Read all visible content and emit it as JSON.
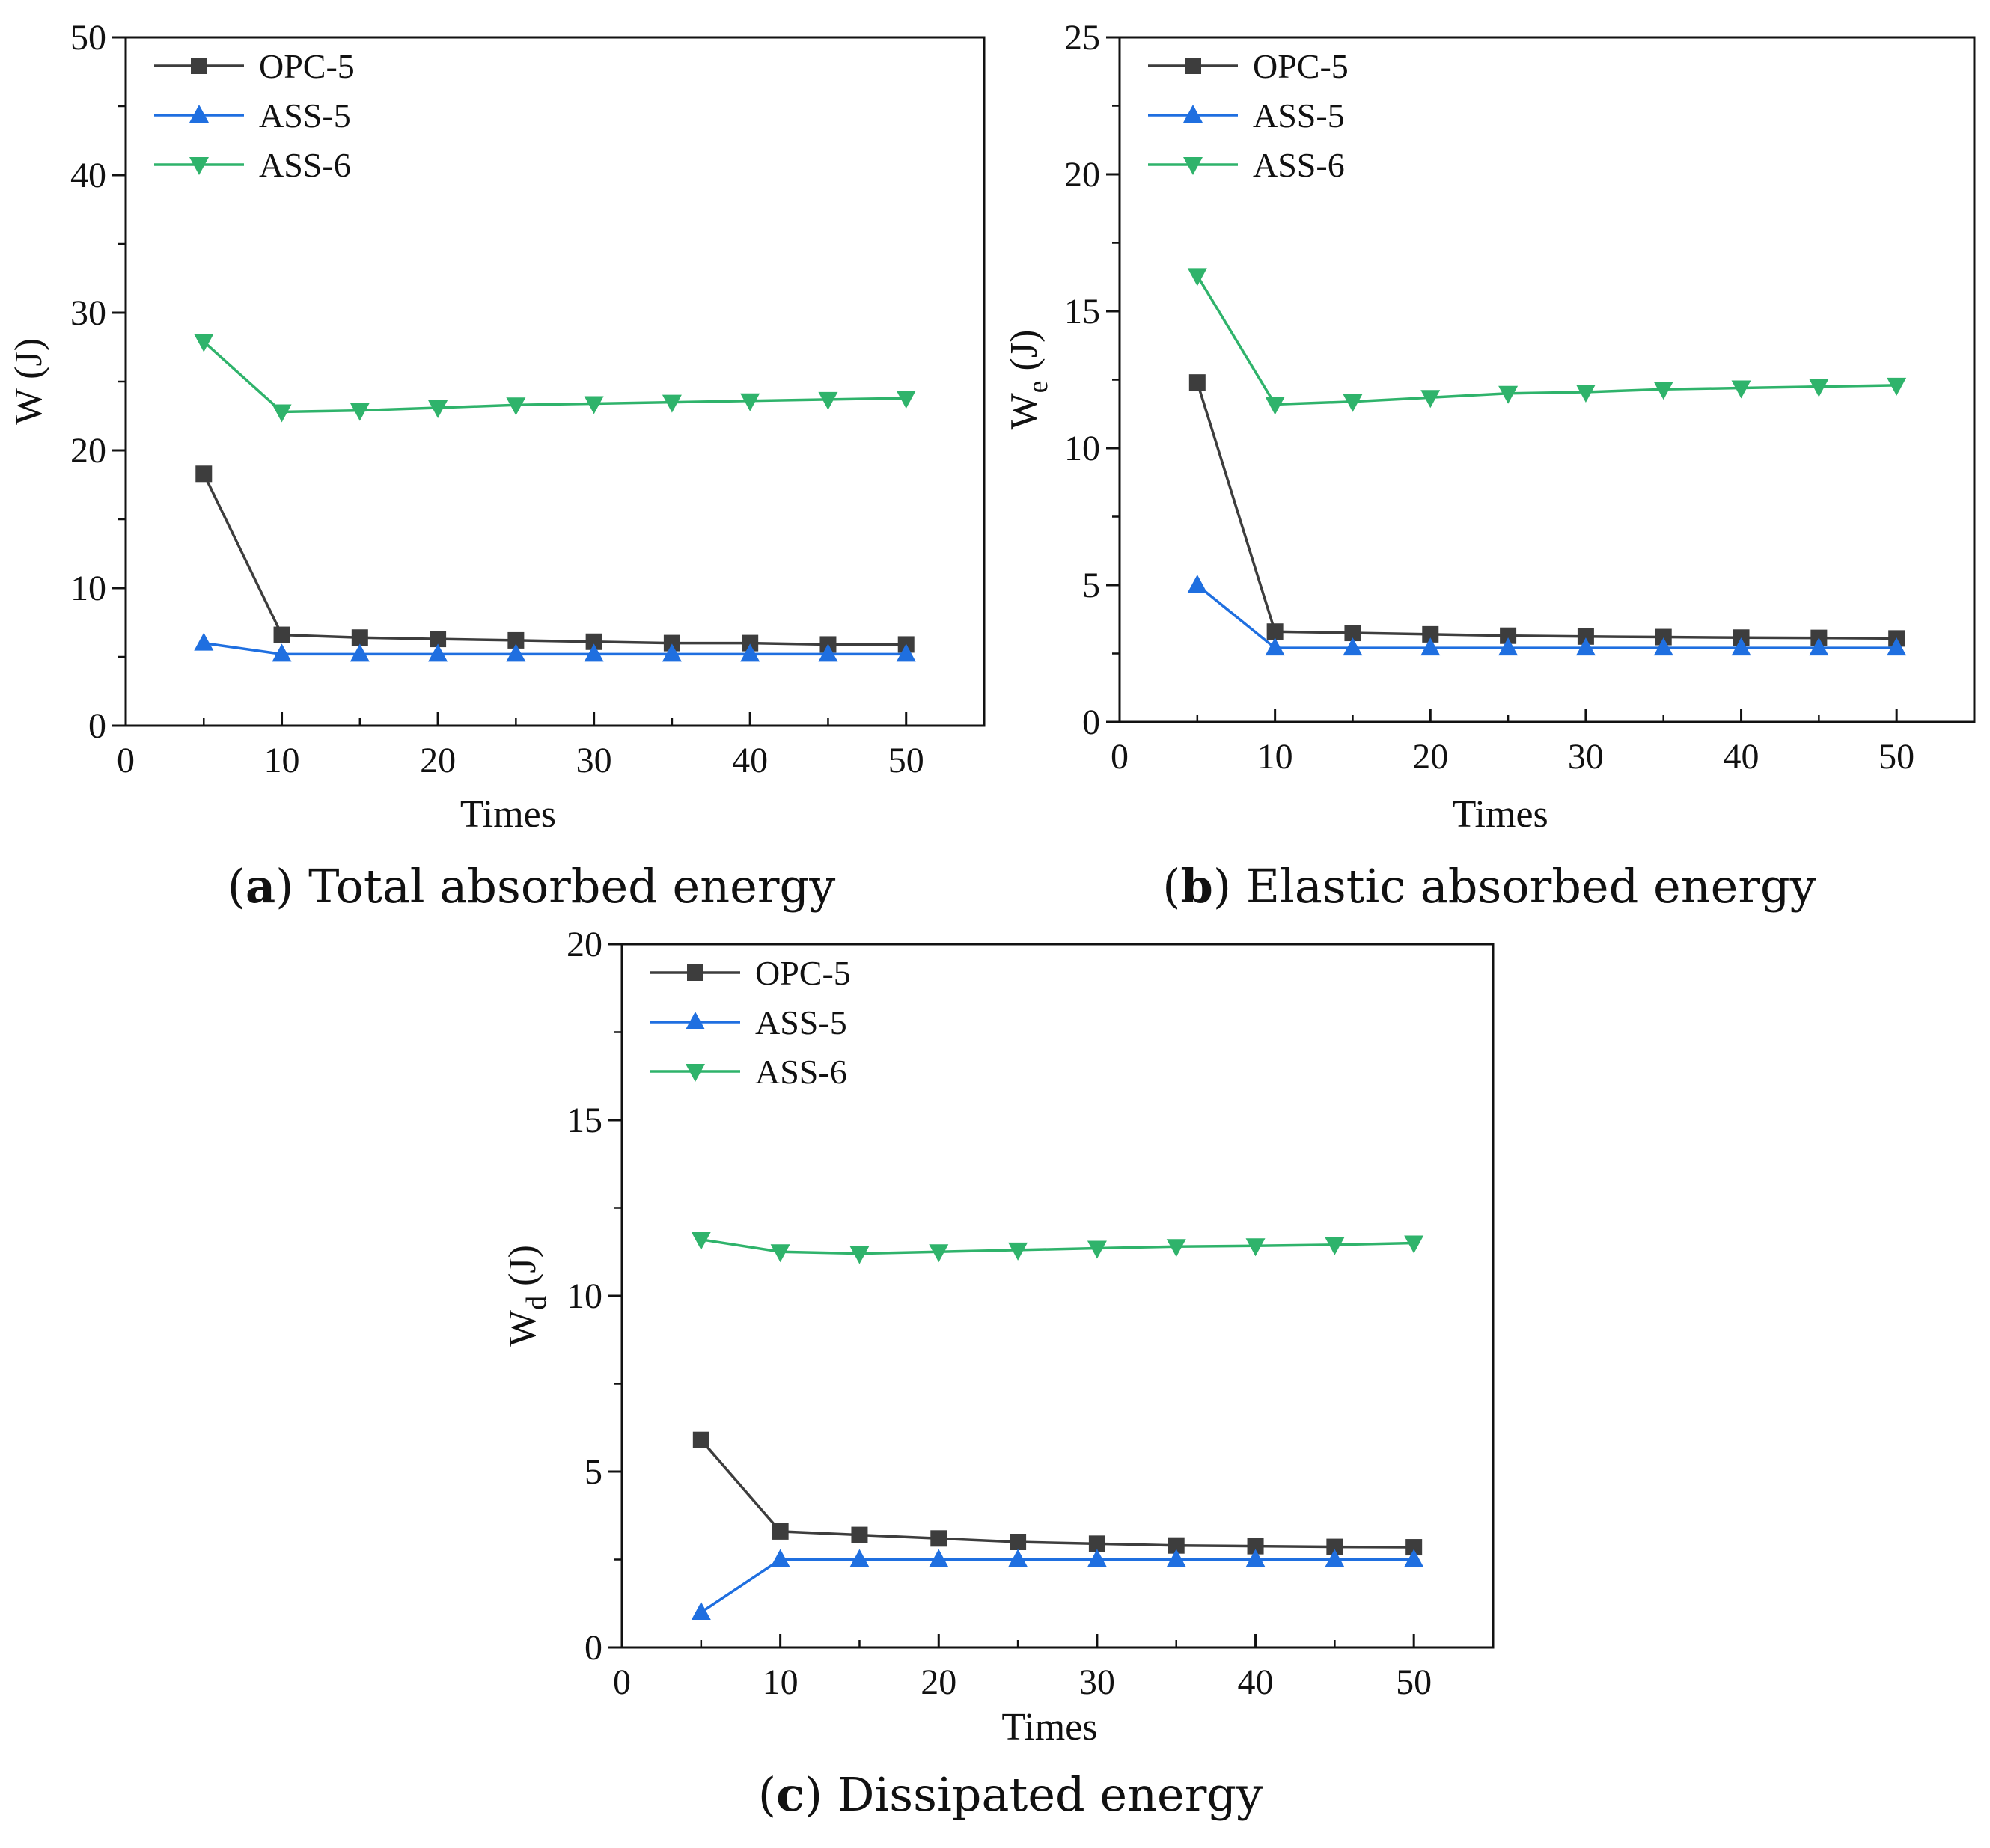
{
  "chart_data": [
    {
      "type": "line",
      "panel_letter": "a",
      "caption_text": "Total absorbed energy",
      "xlabel": "Times",
      "ylabel": "W (J)",
      "ylabel_main": "W",
      "ylabel_sub": "",
      "ylabel_unit": "(J)",
      "xlim": [
        0,
        55
      ],
      "ylim": [
        0,
        50
      ],
      "xticks": [
        0,
        10,
        20,
        30,
        40,
        50
      ],
      "yticks": [
        0,
        10,
        20,
        30,
        40,
        50
      ],
      "grid": false,
      "legend_position": "top-left",
      "x": [
        5,
        10,
        15,
        20,
        25,
        30,
        35,
        40,
        45,
        50
      ],
      "series": [
        {
          "name": "OPC-5",
          "marker": "square",
          "color": "#3d3d3d",
          "values": [
            18.3,
            6.6,
            6.4,
            6.3,
            6.2,
            6.1,
            6.0,
            6.0,
            5.9,
            5.9
          ]
        },
        {
          "name": "ASS-5",
          "marker": "triangle-up",
          "color": "#1f6fe0",
          "values": [
            6.0,
            5.2,
            5.2,
            5.2,
            5.2,
            5.2,
            5.2,
            5.2,
            5.2,
            5.2
          ]
        },
        {
          "name": "ASS-6",
          "marker": "triangle-down",
          "color": "#2fb36b",
          "values": [
            27.9,
            22.8,
            22.9,
            23.1,
            23.3,
            23.4,
            23.5,
            23.6,
            23.7,
            23.8
          ]
        }
      ]
    },
    {
      "type": "line",
      "panel_letter": "b",
      "caption_text": "Elastic absorbed energy",
      "xlabel": "Times",
      "ylabel": "We (J)",
      "ylabel_main": "W",
      "ylabel_sub": "e",
      "ylabel_unit": "(J)",
      "xlim": [
        0,
        55
      ],
      "ylim": [
        0,
        25
      ],
      "xticks": [
        0,
        10,
        20,
        30,
        40,
        50
      ],
      "yticks": [
        0,
        5,
        10,
        15,
        20,
        25
      ],
      "grid": false,
      "legend_position": "top-left",
      "x": [
        5,
        10,
        15,
        20,
        25,
        30,
        35,
        40,
        45,
        50
      ],
      "series": [
        {
          "name": "OPC-5",
          "marker": "square",
          "color": "#3d3d3d",
          "values": [
            12.4,
            3.3,
            3.25,
            3.2,
            3.15,
            3.12,
            3.1,
            3.08,
            3.07,
            3.05
          ]
        },
        {
          "name": "ASS-5",
          "marker": "triangle-up",
          "color": "#1f6fe0",
          "values": [
            5.0,
            2.7,
            2.7,
            2.7,
            2.7,
            2.7,
            2.7,
            2.7,
            2.7,
            2.7
          ]
        },
        {
          "name": "ASS-6",
          "marker": "triangle-down",
          "color": "#2fb36b",
          "values": [
            16.3,
            11.6,
            11.7,
            11.85,
            12.0,
            12.05,
            12.15,
            12.2,
            12.25,
            12.3
          ]
        }
      ]
    },
    {
      "type": "line",
      "panel_letter": "c",
      "caption_text": "Dissipated energy",
      "xlabel": "Times",
      "ylabel": "Wd (J)",
      "ylabel_main": "W",
      "ylabel_sub": "d",
      "ylabel_unit": "(J)",
      "xlim": [
        0,
        55
      ],
      "ylim": [
        0,
        20
      ],
      "xticks": [
        0,
        10,
        20,
        30,
        40,
        50
      ],
      "yticks": [
        0,
        5,
        10,
        15,
        20
      ],
      "grid": false,
      "legend_position": "top-left",
      "x": [
        5,
        10,
        15,
        20,
        25,
        30,
        35,
        40,
        45,
        50
      ],
      "series": [
        {
          "name": "OPC-5",
          "marker": "square",
          "color": "#3d3d3d",
          "values": [
            5.9,
            3.3,
            3.2,
            3.1,
            3.0,
            2.95,
            2.9,
            2.88,
            2.86,
            2.85
          ]
        },
        {
          "name": "ASS-5",
          "marker": "triangle-up",
          "color": "#1f6fe0",
          "values": [
            1.0,
            2.5,
            2.5,
            2.5,
            2.5,
            2.5,
            2.5,
            2.5,
            2.5,
            2.5
          ]
        },
        {
          "name": "ASS-6",
          "marker": "triangle-down",
          "color": "#2fb36b",
          "values": [
            11.6,
            11.25,
            11.2,
            11.25,
            11.3,
            11.35,
            11.4,
            11.42,
            11.45,
            11.5
          ]
        }
      ]
    }
  ]
}
